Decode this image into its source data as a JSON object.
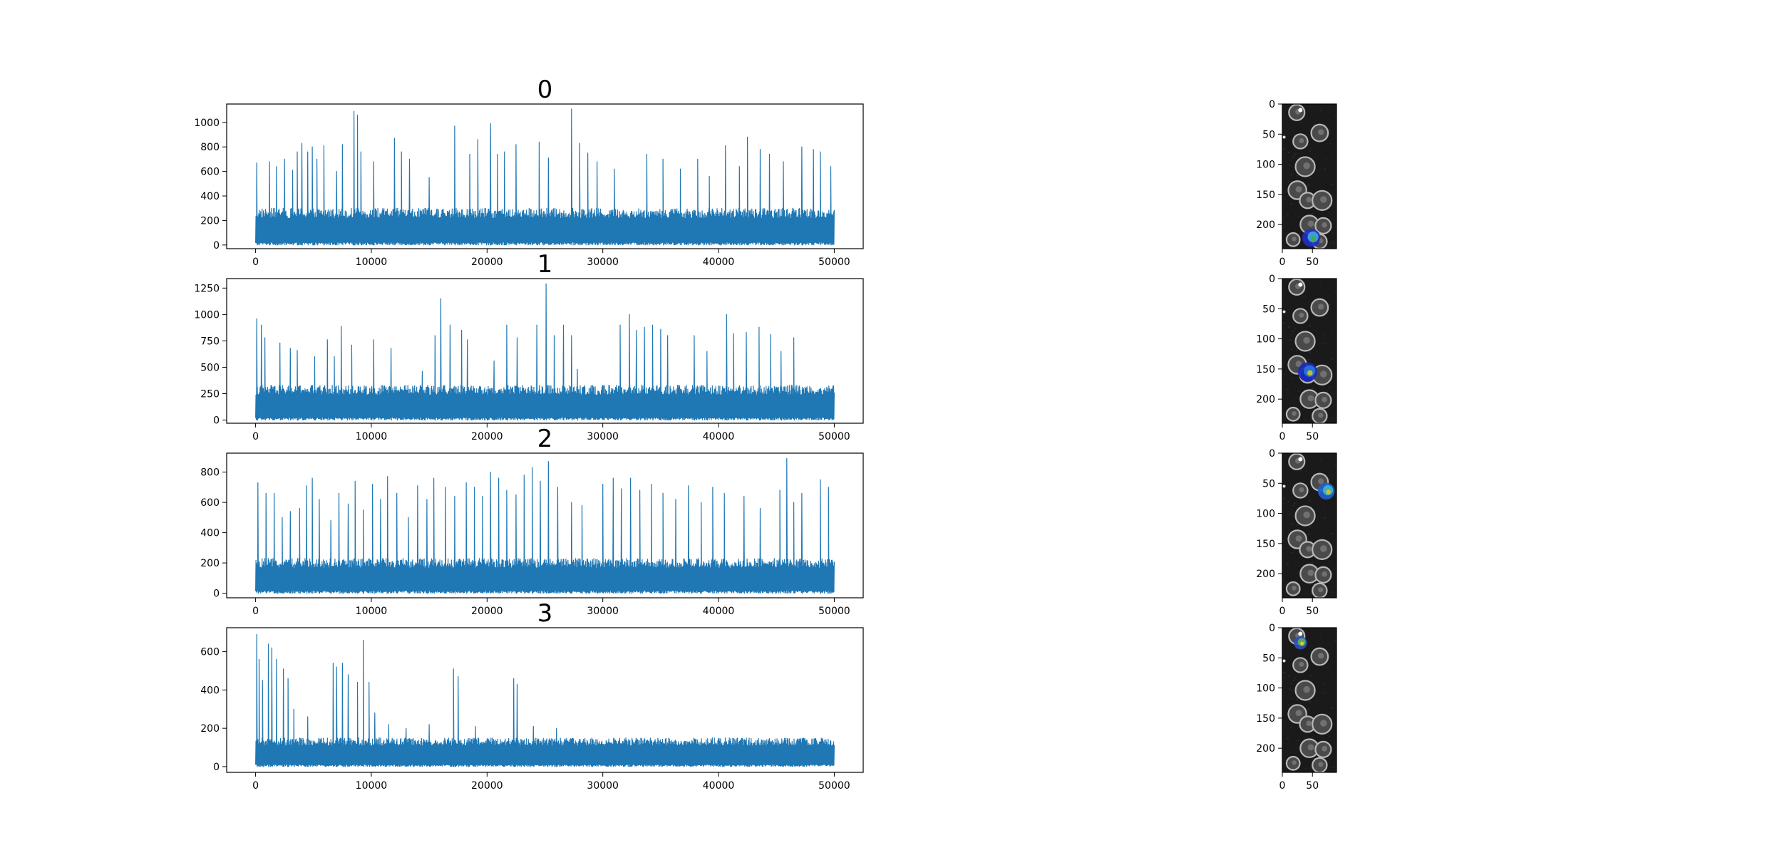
{
  "figure": {
    "background": "#ffffff",
    "trace_color": "#1f77b4"
  },
  "chart_data": [
    {
      "type": "line",
      "title": "0",
      "xlabel": "",
      "ylabel": "",
      "xlim": [
        -2500,
        52500
      ],
      "ylim": [
        -30,
        1150
      ],
      "xticks": [
        0,
        10000,
        20000,
        30000,
        40000,
        50000
      ],
      "yticks": [
        0,
        200,
        400,
        600,
        800,
        1000
      ],
      "n_samples": 50000,
      "baseline_band": [
        0,
        300
      ],
      "peaks": [
        {
          "x": 100,
          "y": 670
        },
        {
          "x": 1200,
          "y": 680
        },
        {
          "x": 1800,
          "y": 640
        },
        {
          "x": 2500,
          "y": 700
        },
        {
          "x": 3200,
          "y": 610
        },
        {
          "x": 3600,
          "y": 760
        },
        {
          "x": 4000,
          "y": 830
        },
        {
          "x": 4500,
          "y": 760
        },
        {
          "x": 4900,
          "y": 800
        },
        {
          "x": 5300,
          "y": 700
        },
        {
          "x": 5900,
          "y": 810
        },
        {
          "x": 7000,
          "y": 600
        },
        {
          "x": 7500,
          "y": 820
        },
        {
          "x": 8500,
          "y": 1090
        },
        {
          "x": 8800,
          "y": 1060
        },
        {
          "x": 9100,
          "y": 760
        },
        {
          "x": 10200,
          "y": 680
        },
        {
          "x": 12000,
          "y": 870
        },
        {
          "x": 12600,
          "y": 760
        },
        {
          "x": 13300,
          "y": 700
        },
        {
          "x": 15000,
          "y": 550
        },
        {
          "x": 17200,
          "y": 970
        },
        {
          "x": 18500,
          "y": 740
        },
        {
          "x": 19200,
          "y": 860
        },
        {
          "x": 20300,
          "y": 990
        },
        {
          "x": 20900,
          "y": 740
        },
        {
          "x": 21500,
          "y": 760
        },
        {
          "x": 22500,
          "y": 820
        },
        {
          "x": 24500,
          "y": 840
        },
        {
          "x": 25300,
          "y": 710
        },
        {
          "x": 27300,
          "y": 1110
        },
        {
          "x": 28000,
          "y": 830
        },
        {
          "x": 28700,
          "y": 750
        },
        {
          "x": 29500,
          "y": 680
        },
        {
          "x": 31000,
          "y": 620
        },
        {
          "x": 33800,
          "y": 740
        },
        {
          "x": 35200,
          "y": 700
        },
        {
          "x": 36700,
          "y": 620
        },
        {
          "x": 38200,
          "y": 700
        },
        {
          "x": 39200,
          "y": 560
        },
        {
          "x": 40600,
          "y": 810
        },
        {
          "x": 41800,
          "y": 640
        },
        {
          "x": 42500,
          "y": 880
        },
        {
          "x": 43600,
          "y": 780
        },
        {
          "x": 44400,
          "y": 740
        },
        {
          "x": 45600,
          "y": 680
        },
        {
          "x": 47200,
          "y": 800
        },
        {
          "x": 48200,
          "y": 780
        },
        {
          "x": 48800,
          "y": 760
        },
        {
          "x": 49700,
          "y": 640
        }
      ]
    },
    {
      "type": "line",
      "title": "1",
      "xlabel": "",
      "ylabel": "",
      "xlim": [
        -2500,
        52500
      ],
      "ylim": [
        -30,
        1340
      ],
      "xticks": [
        0,
        10000,
        20000,
        30000,
        40000,
        50000
      ],
      "yticks": [
        0,
        250,
        500,
        750,
        1000,
        1250
      ],
      "n_samples": 50000,
      "baseline_band": [
        0,
        330
      ],
      "peaks": [
        {
          "x": 100,
          "y": 960
        },
        {
          "x": 500,
          "y": 900
        },
        {
          "x": 800,
          "y": 780
        },
        {
          "x": 2100,
          "y": 730
        },
        {
          "x": 3000,
          "y": 680
        },
        {
          "x": 3600,
          "y": 660
        },
        {
          "x": 5100,
          "y": 600
        },
        {
          "x": 6200,
          "y": 760
        },
        {
          "x": 6800,
          "y": 600
        },
        {
          "x": 7400,
          "y": 890
        },
        {
          "x": 8300,
          "y": 710
        },
        {
          "x": 10200,
          "y": 760
        },
        {
          "x": 11700,
          "y": 680
        },
        {
          "x": 14400,
          "y": 460
        },
        {
          "x": 15500,
          "y": 800
        },
        {
          "x": 16000,
          "y": 1150
        },
        {
          "x": 16800,
          "y": 900
        },
        {
          "x": 17800,
          "y": 850
        },
        {
          "x": 18300,
          "y": 760
        },
        {
          "x": 20600,
          "y": 560
        },
        {
          "x": 21700,
          "y": 900
        },
        {
          "x": 22600,
          "y": 780
        },
        {
          "x": 24300,
          "y": 900
        },
        {
          "x": 25100,
          "y": 1290
        },
        {
          "x": 25800,
          "y": 800
        },
        {
          "x": 26600,
          "y": 900
        },
        {
          "x": 27300,
          "y": 800
        },
        {
          "x": 27800,
          "y": 480
        },
        {
          "x": 31500,
          "y": 900
        },
        {
          "x": 32300,
          "y": 1000
        },
        {
          "x": 32900,
          "y": 850
        },
        {
          "x": 33600,
          "y": 880
        },
        {
          "x": 34300,
          "y": 900
        },
        {
          "x": 35000,
          "y": 860
        },
        {
          "x": 35600,
          "y": 800
        },
        {
          "x": 37900,
          "y": 800
        },
        {
          "x": 39000,
          "y": 650
        },
        {
          "x": 40700,
          "y": 1000
        },
        {
          "x": 41300,
          "y": 820
        },
        {
          "x": 42400,
          "y": 830
        },
        {
          "x": 43500,
          "y": 880
        },
        {
          "x": 44500,
          "y": 810
        },
        {
          "x": 45400,
          "y": 650
        },
        {
          "x": 46500,
          "y": 780
        }
      ]
    },
    {
      "type": "line",
      "title": "2",
      "xlabel": "",
      "ylabel": "",
      "xlim": [
        -2500,
        52500
      ],
      "ylim": [
        -30,
        925
      ],
      "xticks": [
        0,
        10000,
        20000,
        30000,
        40000,
        50000
      ],
      "yticks": [
        0,
        200,
        400,
        600,
        800
      ],
      "n_samples": 50000,
      "baseline_band": [
        0,
        230
      ],
      "peaks": [
        {
          "x": 200,
          "y": 730
        },
        {
          "x": 900,
          "y": 660
        },
        {
          "x": 1600,
          "y": 660
        },
        {
          "x": 2300,
          "y": 500
        },
        {
          "x": 3000,
          "y": 540
        },
        {
          "x": 3800,
          "y": 560
        },
        {
          "x": 4400,
          "y": 710
        },
        {
          "x": 4900,
          "y": 760
        },
        {
          "x": 5500,
          "y": 620
        },
        {
          "x": 6500,
          "y": 480
        },
        {
          "x": 7200,
          "y": 660
        },
        {
          "x": 8000,
          "y": 590
        },
        {
          "x": 8600,
          "y": 740
        },
        {
          "x": 9300,
          "y": 550
        },
        {
          "x": 10100,
          "y": 720
        },
        {
          "x": 10800,
          "y": 620
        },
        {
          "x": 11400,
          "y": 770
        },
        {
          "x": 12200,
          "y": 660
        },
        {
          "x": 13200,
          "y": 500
        },
        {
          "x": 14000,
          "y": 710
        },
        {
          "x": 14800,
          "y": 620
        },
        {
          "x": 15400,
          "y": 760
        },
        {
          "x": 16400,
          "y": 700
        },
        {
          "x": 17200,
          "y": 640
        },
        {
          "x": 18200,
          "y": 730
        },
        {
          "x": 18900,
          "y": 700
        },
        {
          "x": 19600,
          "y": 640
        },
        {
          "x": 20300,
          "y": 800
        },
        {
          "x": 21000,
          "y": 760
        },
        {
          "x": 21700,
          "y": 680
        },
        {
          "x": 22500,
          "y": 650
        },
        {
          "x": 23200,
          "y": 780
        },
        {
          "x": 23900,
          "y": 830
        },
        {
          "x": 24600,
          "y": 740
        },
        {
          "x": 25300,
          "y": 870
        },
        {
          "x": 26100,
          "y": 700
        },
        {
          "x": 27300,
          "y": 600
        },
        {
          "x": 28200,
          "y": 580
        },
        {
          "x": 30000,
          "y": 720
        },
        {
          "x": 30900,
          "y": 760
        },
        {
          "x": 31600,
          "y": 690
        },
        {
          "x": 32400,
          "y": 760
        },
        {
          "x": 33200,
          "y": 680
        },
        {
          "x": 34200,
          "y": 720
        },
        {
          "x": 35200,
          "y": 660
        },
        {
          "x": 36300,
          "y": 620
        },
        {
          "x": 37400,
          "y": 710
        },
        {
          "x": 38500,
          "y": 600
        },
        {
          "x": 39500,
          "y": 700
        },
        {
          "x": 40500,
          "y": 660
        },
        {
          "x": 42200,
          "y": 640
        },
        {
          "x": 43600,
          "y": 560
        },
        {
          "x": 45300,
          "y": 680
        },
        {
          "x": 45900,
          "y": 890
        },
        {
          "x": 46500,
          "y": 600
        },
        {
          "x": 47200,
          "y": 660
        },
        {
          "x": 48800,
          "y": 750
        },
        {
          "x": 49500,
          "y": 700
        }
      ]
    },
    {
      "type": "line",
      "title": "3",
      "xlabel": "",
      "ylabel": "",
      "xlim": [
        -2500,
        52500
      ],
      "ylim": [
        -30,
        725
      ],
      "xticks": [
        0,
        10000,
        20000,
        30000,
        40000,
        50000
      ],
      "yticks": [
        0,
        200,
        400,
        600
      ],
      "n_samples": 50000,
      "baseline_band": [
        0,
        150
      ],
      "peaks": [
        {
          "x": 100,
          "y": 690
        },
        {
          "x": 300,
          "y": 560
        },
        {
          "x": 600,
          "y": 450
        },
        {
          "x": 1100,
          "y": 640
        },
        {
          "x": 1400,
          "y": 620
        },
        {
          "x": 1800,
          "y": 560
        },
        {
          "x": 2400,
          "y": 510
        },
        {
          "x": 2800,
          "y": 460
        },
        {
          "x": 3300,
          "y": 300
        },
        {
          "x": 4500,
          "y": 260
        },
        {
          "x": 6700,
          "y": 540
        },
        {
          "x": 7000,
          "y": 520
        },
        {
          "x": 7500,
          "y": 540
        },
        {
          "x": 8000,
          "y": 480
        },
        {
          "x": 8800,
          "y": 440
        },
        {
          "x": 9300,
          "y": 660
        },
        {
          "x": 9800,
          "y": 440
        },
        {
          "x": 10300,
          "y": 280
        },
        {
          "x": 11500,
          "y": 220
        },
        {
          "x": 13000,
          "y": 200
        },
        {
          "x": 15000,
          "y": 220
        },
        {
          "x": 17100,
          "y": 510
        },
        {
          "x": 17500,
          "y": 470
        },
        {
          "x": 19000,
          "y": 210
        },
        {
          "x": 22300,
          "y": 460
        },
        {
          "x": 22600,
          "y": 430
        },
        {
          "x": 24000,
          "y": 210
        },
        {
          "x": 26000,
          "y": 200
        }
      ]
    }
  ],
  "images": [
    {
      "title": "",
      "colormap": "gray",
      "xlim": [
        0,
        90
      ],
      "ylim": [
        0,
        240
      ],
      "xticks": [
        0,
        50
      ],
      "yticks": [
        0,
        50,
        100,
        150,
        200
      ],
      "overlay": {
        "cx": 48,
        "cy": 222,
        "r": 15,
        "colors": [
          "#2030c8",
          "#40a8d8",
          "#38b048"
        ]
      }
    },
    {
      "title": "",
      "colormap": "gray",
      "xlim": [
        0,
        90
      ],
      "ylim": [
        0,
        240
      ],
      "xticks": [
        0,
        50
      ],
      "yticks": [
        0,
        50,
        100,
        150,
        200
      ],
      "overlay": {
        "cx": 42,
        "cy": 155,
        "r": 16,
        "colors": [
          "#1828c0",
          "#2878d8",
          "#c8c030"
        ]
      }
    },
    {
      "title": "",
      "colormap": "gray",
      "xlim": [
        0,
        90
      ],
      "ylim": [
        0,
        240
      ],
      "xticks": [
        0,
        50
      ],
      "yticks": [
        0,
        50,
        100,
        150,
        200
      ],
      "overlay": {
        "cx": 73,
        "cy": 63,
        "r": 14,
        "colors": [
          "#2060d0",
          "#40b8c0",
          "#d8c020"
        ]
      }
    },
    {
      "title": "",
      "colormap": "gray",
      "xlim": [
        0,
        90
      ],
      "ylim": [
        0,
        240
      ],
      "xticks": [
        0,
        50
      ],
      "yticks": [
        0,
        50,
        100,
        150,
        200
      ],
      "overlay": {
        "cx": 30,
        "cy": 25,
        "r": 11,
        "colors": [
          "#3050c0",
          "#58b060",
          "#e8c828"
        ]
      }
    }
  ]
}
